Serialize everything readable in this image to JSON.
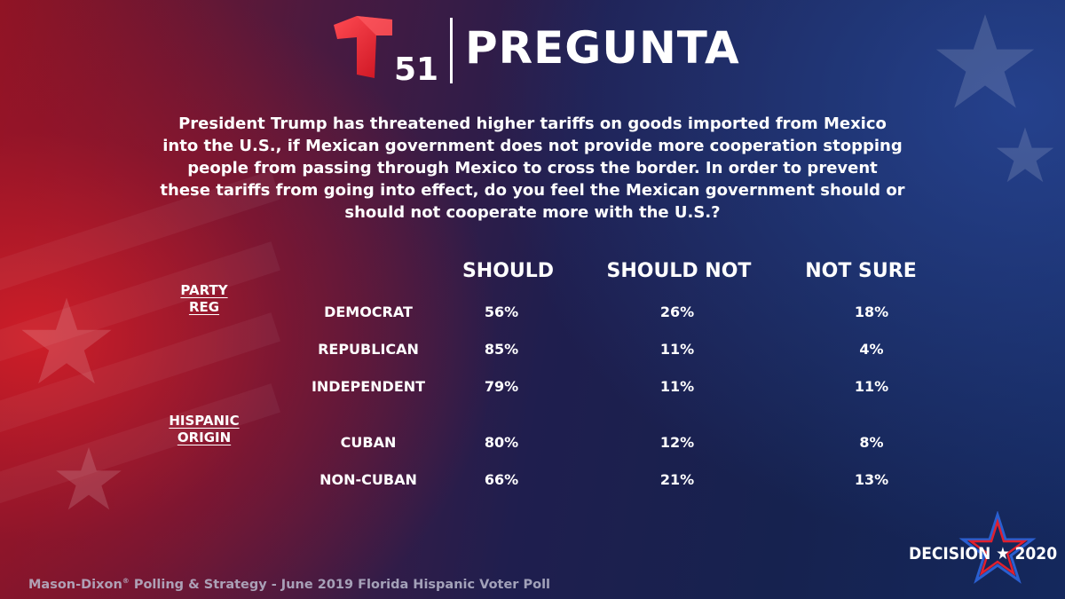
{
  "header": {
    "logo_number": "51",
    "title": "PREGUNTA"
  },
  "question": "President Trump has threatened higher tariffs on goods imported from Mexico into the U.S., if Mexican government does not provide more cooperation stopping people from passing through Mexico to cross the border. In order to prevent these tariffs from going into effect, do you feel the Mexican government should or should not cooperate more with the U.S.?",
  "chart_data": {
    "type": "table",
    "columns": [
      "SHOULD",
      "SHOULD NOT",
      "NOT SURE"
    ],
    "groups": [
      {
        "label_line1": "PARTY",
        "label_line2": "REG",
        "rows": [
          {
            "label": "DEMOCRAT",
            "values": [
              "56%",
              "26%",
              "18%"
            ]
          },
          {
            "label": "REPUBLICAN",
            "values": [
              "85%",
              "11%",
              "4%"
            ]
          },
          {
            "label": "INDEPENDENT",
            "values": [
              "79%",
              "11%",
              "11%"
            ]
          }
        ]
      },
      {
        "label_line1": "HISPANIC",
        "label_line2": "ORIGIN",
        "rows": [
          {
            "label": "CUBAN",
            "values": [
              "80%",
              "12%",
              "8%"
            ]
          },
          {
            "label": "NON-CUBAN",
            "values": [
              "66%",
              "21%",
              "13%"
            ]
          }
        ]
      }
    ]
  },
  "footer": {
    "source_prefix": "Mason-Dixon",
    "source_mark": "®",
    "source_rest": " Polling & Strategy - June 2019 Florida Hispanic Voter Poll",
    "badge_word": "DECISION",
    "badge_star": "★",
    "badge_year": "2020"
  },
  "colors": {
    "brand_red": "#e0202e",
    "brand_blue": "#2a4fa8",
    "text": "#ffffff"
  }
}
